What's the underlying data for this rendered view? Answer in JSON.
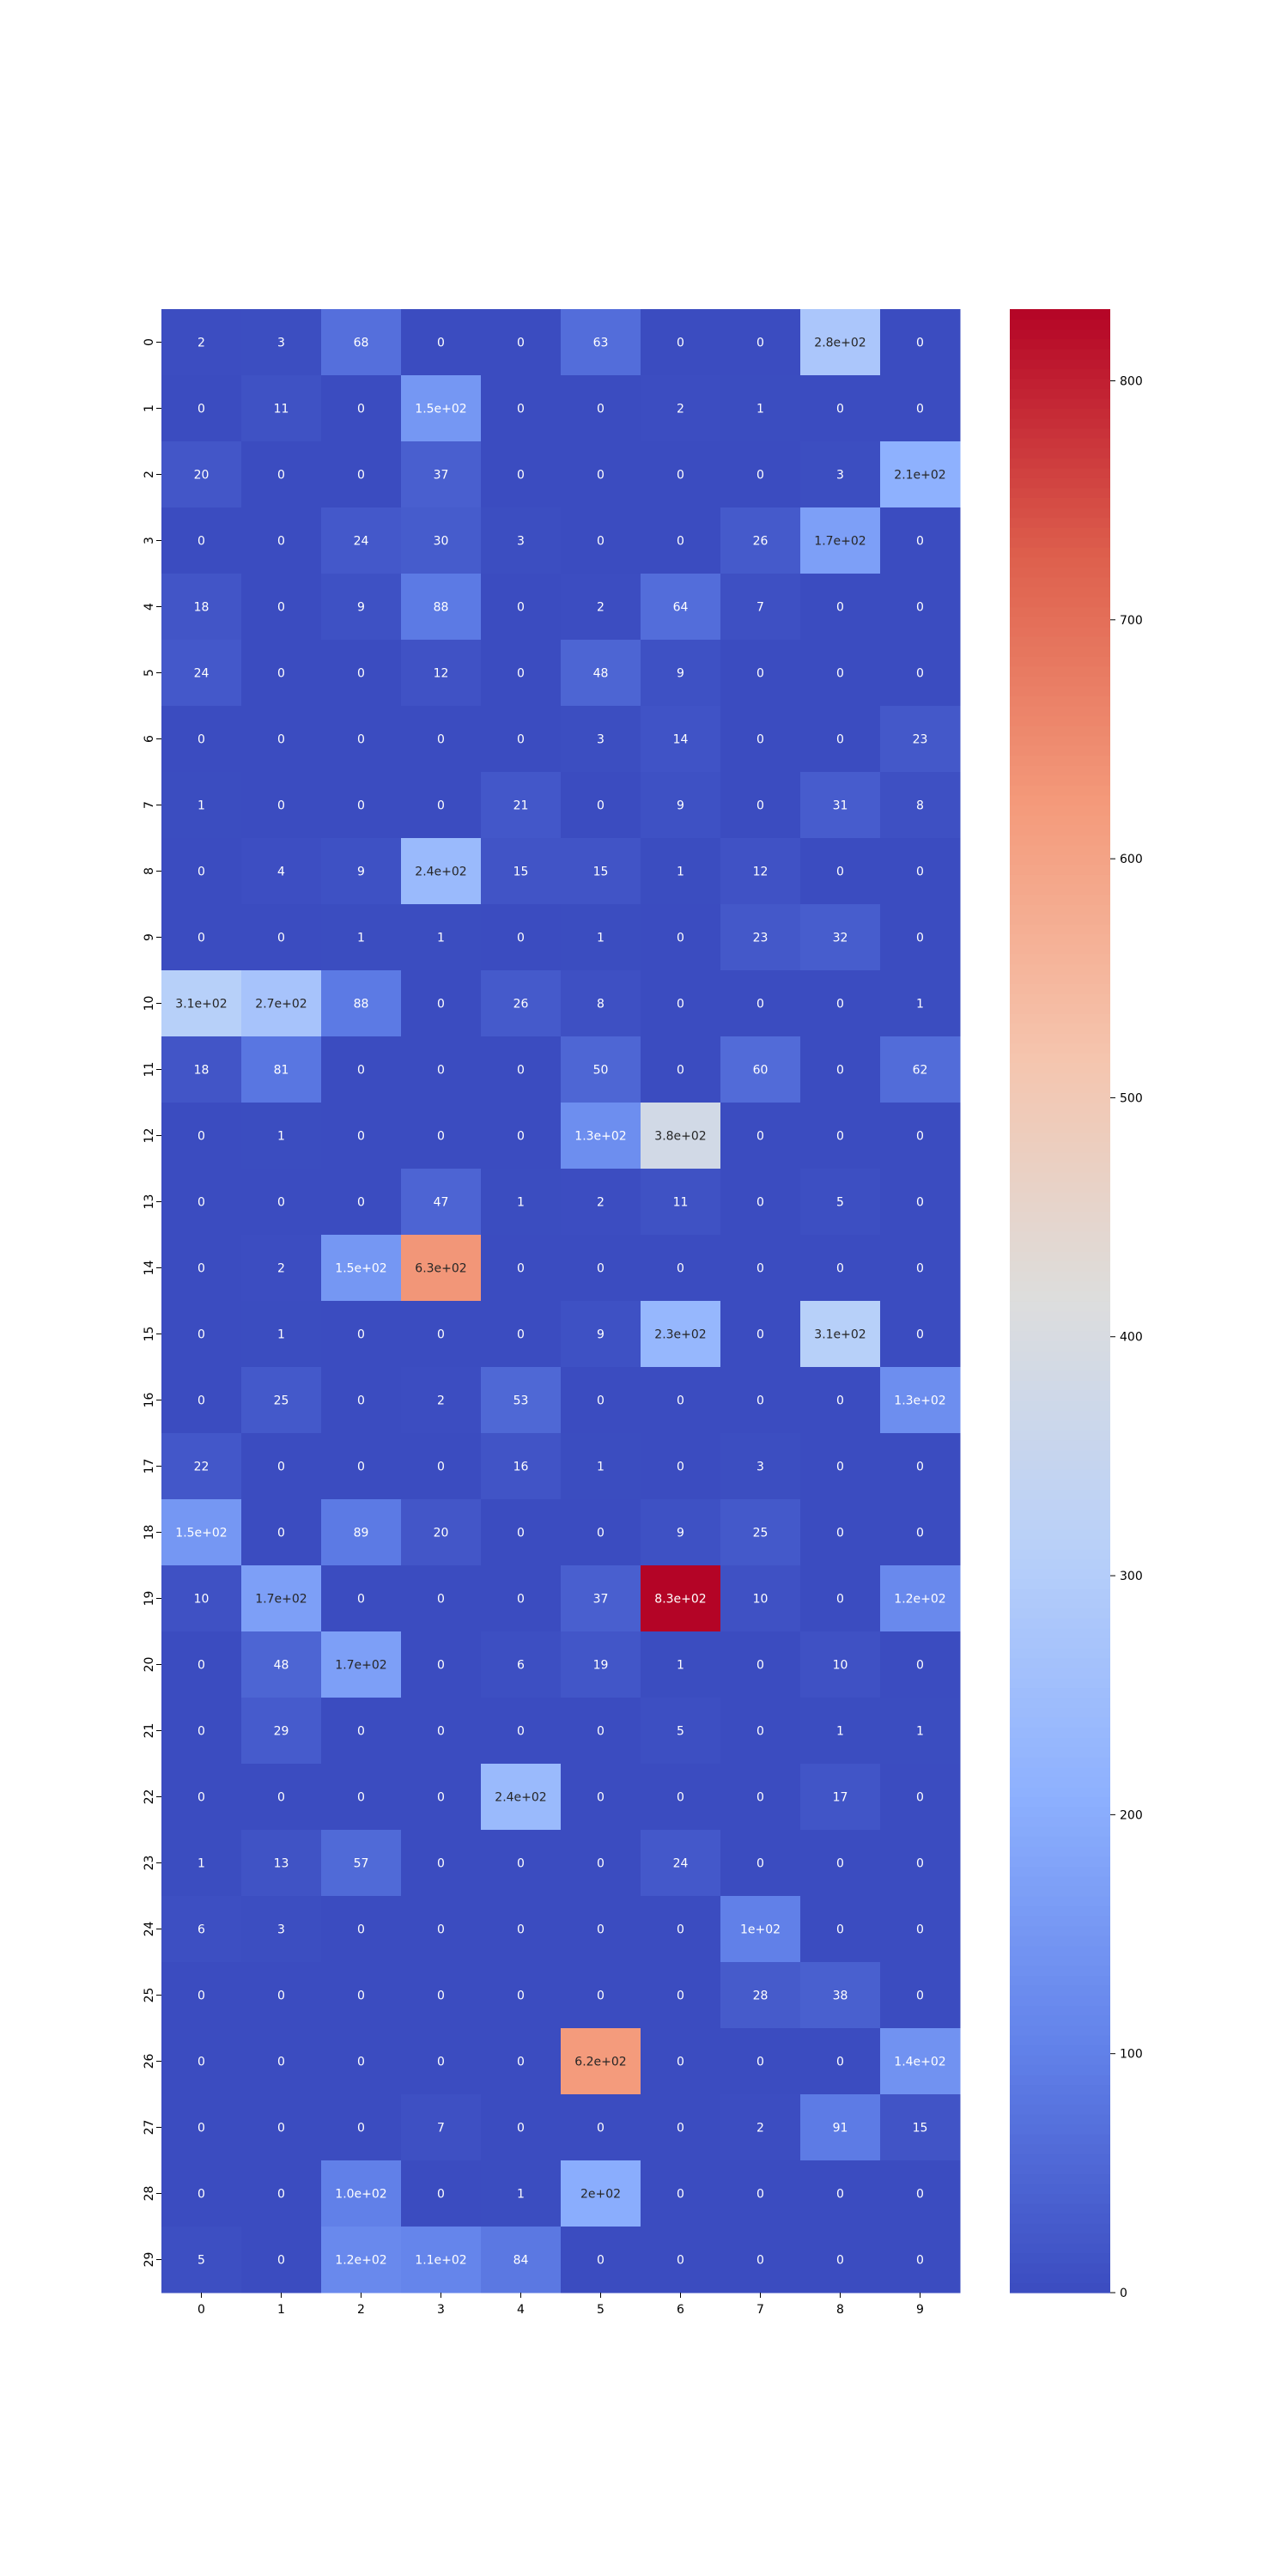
{
  "chart_data": {
    "type": "heatmap",
    "title": "",
    "xlabel": "",
    "ylabel": "",
    "colormap": "coolwarm",
    "annotation_format": "matplotlib_2g",
    "x_categories": [
      "0",
      "1",
      "2",
      "3",
      "4",
      "5",
      "6",
      "7",
      "8",
      "9"
    ],
    "y_categories": [
      "0",
      "1",
      "2",
      "3",
      "4",
      "5",
      "6",
      "7",
      "8",
      "9",
      "10",
      "11",
      "12",
      "13",
      "14",
      "15",
      "16",
      "17",
      "18",
      "19",
      "20",
      "21",
      "22",
      "23",
      "24",
      "25",
      "26",
      "27",
      "28",
      "29"
    ],
    "values": [
      [
        2,
        3,
        68,
        0,
        0,
        63,
        0,
        0,
        280,
        0
      ],
      [
        0,
        11,
        0,
        150,
        0,
        0,
        2,
        1,
        0,
        0
      ],
      [
        20,
        0,
        0,
        37,
        0,
        0,
        0,
        0,
        3,
        210
      ],
      [
        0,
        0,
        24,
        30,
        3,
        0,
        0,
        26,
        170,
        0
      ],
      [
        18,
        0,
        9,
        88,
        0,
        2,
        64,
        7,
        0,
        0
      ],
      [
        24,
        0,
        0,
        12,
        0,
        48,
        9,
        0,
        0,
        0
      ],
      [
        0,
        0,
        0,
        0,
        0,
        3,
        14,
        0,
        0,
        23
      ],
      [
        1,
        0,
        0,
        0,
        21,
        0,
        9,
        0,
        31,
        8
      ],
      [
        0,
        4,
        9,
        240,
        15,
        15,
        1,
        12,
        0,
        0
      ],
      [
        0,
        0,
        1,
        1,
        0,
        1,
        0,
        23,
        32,
        0
      ],
      [
        310,
        270,
        88,
        0,
        26,
        8,
        0,
        0,
        0,
        1
      ],
      [
        18,
        81,
        0,
        0,
        0,
        50,
        0,
        60,
        0,
        62
      ],
      [
        0,
        1,
        0,
        0,
        0,
        130,
        380,
        0,
        0,
        0
      ],
      [
        0,
        0,
        0,
        47,
        1,
        2,
        11,
        0,
        5,
        0
      ],
      [
        0,
        2,
        150,
        630,
        0,
        0,
        0,
        0,
        0,
        0
      ],
      [
        0,
        1,
        0,
        0,
        0,
        9,
        230,
        0,
        310,
        0
      ],
      [
        0,
        25,
        0,
        2,
        53,
        0,
        0,
        0,
        0,
        130
      ],
      [
        22,
        0,
        0,
        0,
        16,
        1,
        0,
        3,
        0,
        0
      ],
      [
        150,
        0,
        89,
        20,
        0,
        0,
        9,
        25,
        0,
        0
      ],
      [
        10,
        170,
        0,
        0,
        0,
        37,
        830,
        10,
        0,
        120
      ],
      [
        0,
        48,
        170,
        0,
        6,
        19,
        1,
        0,
        10,
        0
      ],
      [
        0,
        29,
        0,
        0,
        0,
        0,
        5,
        0,
        1,
        1
      ],
      [
        0,
        0,
        0,
        0,
        240,
        0,
        0,
        0,
        17,
        0
      ],
      [
        1,
        13,
        57,
        0,
        0,
        0,
        24,
        0,
        0,
        0
      ],
      [
        6,
        3,
        0,
        0,
        0,
        0,
        0,
        100,
        0,
        0
      ],
      [
        0,
        0,
        0,
        0,
        0,
        0,
        0,
        28,
        38,
        0
      ],
      [
        0,
        0,
        0,
        0,
        0,
        620,
        0,
        0,
        0,
        140
      ],
      [
        0,
        0,
        0,
        7,
        0,
        0,
        0,
        2,
        91,
        15
      ],
      [
        0,
        0,
        100,
        0,
        1,
        200,
        0,
        0,
        0,
        0
      ],
      [
        5,
        0,
        120,
        110,
        84,
        0,
        0,
        0,
        0,
        0
      ]
    ],
    "annotations": [
      [
        "2",
        "3",
        "68",
        "0",
        "0",
        "63",
        "0",
        "0",
        "2.8e+02",
        "0"
      ],
      [
        "0",
        "11",
        "0",
        "1.5e+02",
        "0",
        "0",
        "2",
        "1",
        "0",
        "0"
      ],
      [
        "20",
        "0",
        "0",
        "37",
        "0",
        "0",
        "0",
        "0",
        "3",
        "2.1e+02"
      ],
      [
        "0",
        "0",
        "24",
        "30",
        "3",
        "0",
        "0",
        "26",
        "1.7e+02",
        "0"
      ],
      [
        "18",
        "0",
        "9",
        "88",
        "0",
        "2",
        "64",
        "7",
        "0",
        "0"
      ],
      [
        "24",
        "0",
        "0",
        "12",
        "0",
        "48",
        "9",
        "0",
        "0",
        "0"
      ],
      [
        "0",
        "0",
        "0",
        "0",
        "0",
        "3",
        "14",
        "0",
        "0",
        "23"
      ],
      [
        "1",
        "0",
        "0",
        "0",
        "21",
        "0",
        "9",
        "0",
        "31",
        "8"
      ],
      [
        "0",
        "4",
        "9",
        "2.4e+02",
        "15",
        "15",
        "1",
        "12",
        "0",
        "0"
      ],
      [
        "0",
        "0",
        "1",
        "1",
        "0",
        "1",
        "0",
        "23",
        "32",
        "0"
      ],
      [
        "3.1e+02",
        "2.7e+02",
        "88",
        "0",
        "26",
        "8",
        "0",
        "0",
        "0",
        "1"
      ],
      [
        "18",
        "81",
        "0",
        "0",
        "0",
        "50",
        "0",
        "60",
        "0",
        "62"
      ],
      [
        "0",
        "1",
        "0",
        "0",
        "0",
        "1.3e+02",
        "3.8e+02",
        "0",
        "0",
        "0"
      ],
      [
        "0",
        "0",
        "0",
        "47",
        "1",
        "2",
        "11",
        "0",
        "5",
        "0"
      ],
      [
        "0",
        "2",
        "1.5e+02",
        "6.3e+02",
        "0",
        "0",
        "0",
        "0",
        "0",
        "0"
      ],
      [
        "0",
        "1",
        "0",
        "0",
        "0",
        "9",
        "2.3e+02",
        "0",
        "3.1e+02",
        "0"
      ],
      [
        "0",
        "25",
        "0",
        "2",
        "53",
        "0",
        "0",
        "0",
        "0",
        "1.3e+02"
      ],
      [
        "22",
        "0",
        "0",
        "0",
        "16",
        "1",
        "0",
        "3",
        "0",
        "0"
      ],
      [
        "1.5e+02",
        "0",
        "89",
        "20",
        "0",
        "0",
        "9",
        "25",
        "0",
        "0"
      ],
      [
        "10",
        "1.7e+02",
        "0",
        "0",
        "0",
        "37",
        "8.3e+02",
        "10",
        "0",
        "1.2e+02"
      ],
      [
        "0",
        "48",
        "1.7e+02",
        "0",
        "6",
        "19",
        "1",
        "0",
        "10",
        "0"
      ],
      [
        "0",
        "29",
        "0",
        "0",
        "0",
        "0",
        "5",
        "0",
        "1",
        "1"
      ],
      [
        "0",
        "0",
        "0",
        "0",
        "2.4e+02",
        "0",
        "0",
        "0",
        "17",
        "0"
      ],
      [
        "1",
        "13",
        "57",
        "0",
        "0",
        "0",
        "24",
        "0",
        "0",
        "0"
      ],
      [
        "6",
        "3",
        "0",
        "0",
        "0",
        "0",
        "0",
        "1e+02",
        "0",
        "0"
      ],
      [
        "0",
        "0",
        "0",
        "0",
        "0",
        "0",
        "0",
        "28",
        "38",
        "0"
      ],
      [
        "0",
        "0",
        "0",
        "0",
        "0",
        "6.2e+02",
        "0",
        "0",
        "0",
        "1.4e+02"
      ],
      [
        "0",
        "0",
        "0",
        "7",
        "0",
        "0",
        "0",
        "2",
        "91",
        "15"
      ],
      [
        "0",
        "0",
        "1.0e+02",
        "0",
        "1",
        "2e+02",
        "0",
        "0",
        "0",
        "0"
      ],
      [
        "5",
        "0",
        "1.2e+02",
        "1.1e+02",
        "84",
        "0",
        "0",
        "0",
        "0",
        "0"
      ]
    ],
    "colorbar": {
      "vmin": 0,
      "vmax": 830,
      "ticks": [
        0,
        100,
        200,
        300,
        400,
        500,
        600,
        700,
        800
      ],
      "tick_labels": [
        "0",
        "100",
        "200",
        "300",
        "400",
        "500",
        "600",
        "700",
        "800"
      ]
    },
    "grid": false,
    "legend": "colorbar-right"
  }
}
